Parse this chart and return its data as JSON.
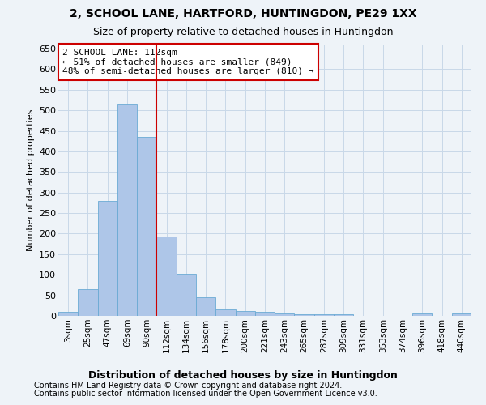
{
  "title": "2, SCHOOL LANE, HARTFORD, HUNTINGDON, PE29 1XX",
  "subtitle": "Size of property relative to detached houses in Huntingdon",
  "xlabel": "Distribution of detached houses by size in Huntingdon",
  "ylabel": "Number of detached properties",
  "footnote1": "Contains HM Land Registry data © Crown copyright and database right 2024.",
  "footnote2": "Contains public sector information licensed under the Open Government Licence v3.0.",
  "bar_labels": [
    "3sqm",
    "25sqm",
    "47sqm",
    "69sqm",
    "90sqm",
    "112sqm",
    "134sqm",
    "156sqm",
    "178sqm",
    "200sqm",
    "221sqm",
    "243sqm",
    "265sqm",
    "287sqm",
    "309sqm",
    "331sqm",
    "353sqm",
    "374sqm",
    "396sqm",
    "418sqm",
    "440sqm"
  ],
  "bar_values": [
    10,
    65,
    280,
    515,
    435,
    193,
    102,
    46,
    15,
    11,
    9,
    5,
    4,
    4,
    4,
    0,
    0,
    0,
    5,
    0,
    5
  ],
  "bar_color": "#aec6e8",
  "bar_edge_color": "#6aaad4",
  "grid_color": "#c8d8e8",
  "background_color": "#eef3f8",
  "vline_x_index": 4,
  "vline_color": "#cc0000",
  "annotation_text": "2 SCHOOL LANE: 112sqm\n← 51% of detached houses are smaller (849)\n48% of semi-detached houses are larger (810) →",
  "annotation_box_color": "#ffffff",
  "annotation_box_edge_color": "#cc0000",
  "ylim": [
    0,
    660
  ],
  "yticks": [
    0,
    50,
    100,
    150,
    200,
    250,
    300,
    350,
    400,
    450,
    500,
    550,
    600,
    650
  ],
  "figsize": [
    6.0,
    5.0
  ],
  "dpi": 100
}
